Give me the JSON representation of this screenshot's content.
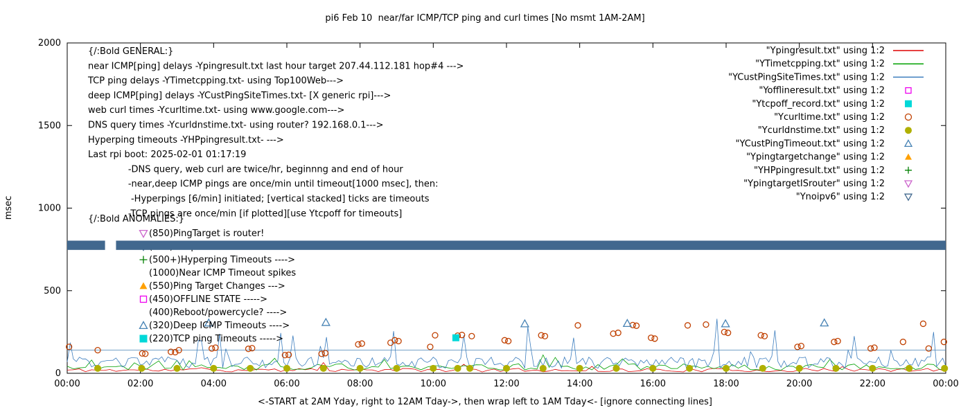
{
  "chart_data": {
    "type": "line",
    "title": "pi6 Feb 10  near/far ICMP/TCP ping and curl times [No msmt 1AM-2AM]",
    "xlabel": "<-START at 2AM Yday, right to 12AM Tday->, then wrap left to 1AM Tday<- [ignore connecting lines]",
    "ylabel": "msec",
    "ylim": [
      0,
      2000
    ],
    "yticks": [
      0,
      500,
      1000,
      1500,
      2000
    ],
    "xticks": [
      "00:00",
      "02:00",
      "04:00",
      "06:00",
      "08:00",
      "10:00",
      "12:00",
      "14:00",
      "16:00",
      "18:00",
      "20:00",
      "22:00",
      "00:00"
    ],
    "general_text": [
      "{/:Bold GENERAL:}",
      "near ICMP[ping] delays -Ypingresult.txt last hour target 207.44.112.181 hop#4 --->",
      "TCP ping delays -YTimetcpping.txt- using Top100Web--->",
      "deep ICMP[ping] delays -YCustPingSiteTimes.txt- [X generic rpi]--->",
      "web curl times -Ycurltime.txt- using www.google.com--->",
      "DNS query times -Ycurldnstime.txt- using router? 192.168.0.1--->",
      "Hyperping timeouts -YHPpingresult.txt- --->",
      "Last rpi boot: 2025-02-01 01:17:19",
      "              -DNS query, web curl are twice/hr, beginnng and end of hour",
      "              -near,deep ICMP pings are once/min until timeout[1000 msec], then:",
      "               -Hyperpings [6/min] initiated; [vertical stacked] ticks are timeouts",
      "              -TCP pings are once/min [if plotted][use Ytcpoff for timeouts]"
    ],
    "anomalies_heading": "{/:Bold ANOMALIES:}",
    "anomalies": [
      {
        "marker": "triangle-down-open",
        "color": "#cc66cc",
        "text": "(850)PingTarget is router!"
      },
      {
        "marker": "triangle-down-open",
        "color": "#41688e",
        "text": "(780)No ipv6 ----->"
      },
      {
        "marker": "plus",
        "color": "#008000",
        "text": "(500+)Hyperping Timeouts ---->"
      },
      {
        "marker": "none",
        "color": "#000000",
        "text": "(1000)Near ICMP Timeout spikes"
      },
      {
        "marker": "triangle-up-filled",
        "color": "#ffa000",
        "text": "(550)Ping Target Changes --->"
      },
      {
        "marker": "square-open",
        "color": "#ee00ee",
        "text": "(450)OFFLINE STATE ----->"
      },
      {
        "marker": "none",
        "color": "#000000",
        "text": "(400)Reboot/powercycle? ---->"
      },
      {
        "marker": "triangle-up-open",
        "color": "#4682b4",
        "text": "(320)Deep ICMP Timeouts ---->"
      },
      {
        "marker": "square-filled",
        "color": "#00d8d8",
        "text": "(220)TCP ping Timeouts ----->"
      }
    ],
    "legend": [
      {
        "label": "\"Ypingresult.txt\" using 1:2",
        "marker": "line",
        "color": "#dd0000"
      },
      {
        "label": "\"YTimetcpping.txt\" using 1:2",
        "marker": "line",
        "color": "#00a000"
      },
      {
        "label": "\"YCustPingSiteTimes.txt\" using 1:2",
        "marker": "line",
        "color": "#3c7dbe"
      },
      {
        "label": "\"Yofflineresult.txt\" using 1:2",
        "marker": "square-open",
        "color": "#ee00ee"
      },
      {
        "label": "\"Ytcpoff_record.txt\" using 1:2",
        "marker": "square-filled",
        "color": "#00d8d8"
      },
      {
        "label": "\"Ycurltime.txt\" using 1:2",
        "marker": "circle-open",
        "color": "#c04000"
      },
      {
        "label": "\"Ycurldnstime.txt\" using 1:2",
        "marker": "circle-filled",
        "color": "#b0b000"
      },
      {
        "label": "\"YCustPingTimeout.txt\" using 1:2",
        "marker": "triangle-up-open",
        "color": "#4682b4"
      },
      {
        "label": "\"Ypingtargetchange\" using 1:2",
        "marker": "triangle-up-filled",
        "color": "#ffa000"
      },
      {
        "label": "\"YHPpingresult.txt\" using 1:2",
        "marker": "plus",
        "color": "#008000"
      },
      {
        "label": "\"YpingtargetISrouter\" using 1:2",
        "marker": "triangle-down-open",
        "color": "#cc66cc"
      },
      {
        "label": "\"Ynoipv6\" using 1:2",
        "marker": "triangle-down-open",
        "color": "#41688e"
      }
    ],
    "series": {
      "near_icmp_line": {
        "name": "Ypingresult",
        "color": "#dd0000",
        "seed": 11,
        "step": 10,
        "base": 8,
        "amp": 22,
        "spike_prob": 0.03,
        "spike_base": 15,
        "spike_amp": 35,
        "spikes": []
      },
      "tcp_ping_line": {
        "name": "YTimetcpping",
        "color": "#00a000",
        "seed": 22,
        "step": 10,
        "base": 18,
        "amp": 40,
        "spike_prob": 0.05,
        "spike_base": 25,
        "spike_amp": 70,
        "spikes": []
      },
      "deep_icmp_line": {
        "name": "YCustPingSiteTimes",
        "color": "#3c7dbe",
        "seed": 33,
        "step": 5,
        "base": 30,
        "amp": 70,
        "spike_prob": 0.05,
        "spike_base": 50,
        "spike_amp": 140,
        "spikes": [
          [
            250,
            240
          ],
          [
            535,
            255
          ],
          [
            648,
            230
          ],
          [
            830,
            215
          ],
          [
            1065,
            330
          ],
          [
            1160,
            260
          ],
          [
            1290,
            225
          ],
          [
            1420,
            250
          ]
        ]
      },
      "connecting_line": {
        "color": "#4682b4",
        "y": 140
      },
      "curl_times": {
        "name": "Ycurltime",
        "marker": "circle-open",
        "color": "#c04000",
        "points": [
          [
            3,
            160
          ],
          [
            50,
            140
          ],
          [
            123,
            120
          ],
          [
            128,
            118
          ],
          [
            170,
            130
          ],
          [
            177,
            128
          ],
          [
            183,
            140
          ],
          [
            237,
            150
          ],
          [
            243,
            155
          ],
          [
            297,
            148
          ],
          [
            303,
            152
          ],
          [
            357,
            110
          ],
          [
            363,
            112
          ],
          [
            417,
            118
          ],
          [
            423,
            122
          ],
          [
            477,
            175
          ],
          [
            483,
            180
          ],
          [
            530,
            185
          ],
          [
            537,
            200
          ],
          [
            543,
            195
          ],
          [
            595,
            160
          ],
          [
            603,
            230
          ],
          [
            640,
            228
          ],
          [
            647,
            232
          ],
          [
            663,
            225
          ],
          [
            717,
            200
          ],
          [
            723,
            195
          ],
          [
            777,
            230
          ],
          [
            783,
            225
          ],
          [
            837,
            290
          ],
          [
            895,
            240
          ],
          [
            903,
            245
          ],
          [
            927,
            292
          ],
          [
            933,
            288
          ],
          [
            957,
            215
          ],
          [
            963,
            210
          ],
          [
            1017,
            290
          ],
          [
            1047,
            295
          ],
          [
            1077,
            250
          ],
          [
            1083,
            245
          ],
          [
            1137,
            230
          ],
          [
            1143,
            225
          ],
          [
            1197,
            160
          ],
          [
            1203,
            165
          ],
          [
            1257,
            190
          ],
          [
            1263,
            195
          ],
          [
            1317,
            150
          ],
          [
            1323,
            155
          ],
          [
            1370,
            190
          ],
          [
            1403,
            300
          ],
          [
            1412,
            150
          ],
          [
            1437,
            190
          ]
        ]
      },
      "dns_times": {
        "name": "Ycurldnstime",
        "marker": "circle-filled",
        "color": "#b0b000",
        "points": [
          [
            50,
            30
          ],
          [
            122,
            30
          ],
          [
            180,
            30
          ],
          [
            240,
            30
          ],
          [
            300,
            30
          ],
          [
            360,
            30
          ],
          [
            420,
            30
          ],
          [
            480,
            30
          ],
          [
            540,
            30
          ],
          [
            600,
            30
          ],
          [
            640,
            30
          ],
          [
            660,
            30
          ],
          [
            720,
            30
          ],
          [
            780,
            30
          ],
          [
            840,
            30
          ],
          [
            900,
            30
          ],
          [
            960,
            30
          ],
          [
            1020,
            30
          ],
          [
            1080,
            30
          ],
          [
            1140,
            30
          ],
          [
            1200,
            30
          ],
          [
            1260,
            30
          ],
          [
            1320,
            30
          ],
          [
            1380,
            30
          ],
          [
            1438,
            30
          ]
        ]
      },
      "deep_icmp_timeouts": {
        "name": "YCustPingTimeout",
        "marker": "triangle-up-open",
        "color": "#4682b4",
        "points": [
          [
            232,
            305
          ],
          [
            424,
            308
          ],
          [
            750,
            300
          ],
          [
            918,
            302
          ],
          [
            1079,
            300
          ],
          [
            1241,
            305
          ]
        ]
      },
      "tcp_off_record": {
        "name": "Ytcpoff_record",
        "marker": "square-filled",
        "color": "#00d8d8",
        "points": [
          [
            637,
            215
          ]
        ]
      },
      "offline_state": {
        "name": "Yofflineresult",
        "marker": "square-open",
        "color": "#ee00ee",
        "points": []
      },
      "hyperping_timeouts": {
        "name": "YHPpingresult",
        "marker": "plus",
        "color": "#008000",
        "points": []
      },
      "ping_target_changes": {
        "name": "Ypingtargetchange",
        "marker": "triangle-up-filled",
        "color": "#ffa000",
        "points": []
      },
      "pingtarget_is_router": {
        "name": "YpingtargetISrouter",
        "marker": "triangle-down-open",
        "color": "#cc66cc",
        "points": []
      },
      "noipv6_band": {
        "name": "Ynoipv6",
        "color": "#41688e",
        "y": 775,
        "half_height": 28,
        "segments": [
          [
            0,
            62
          ],
          [
            80,
            1440
          ]
        ]
      }
    }
  }
}
